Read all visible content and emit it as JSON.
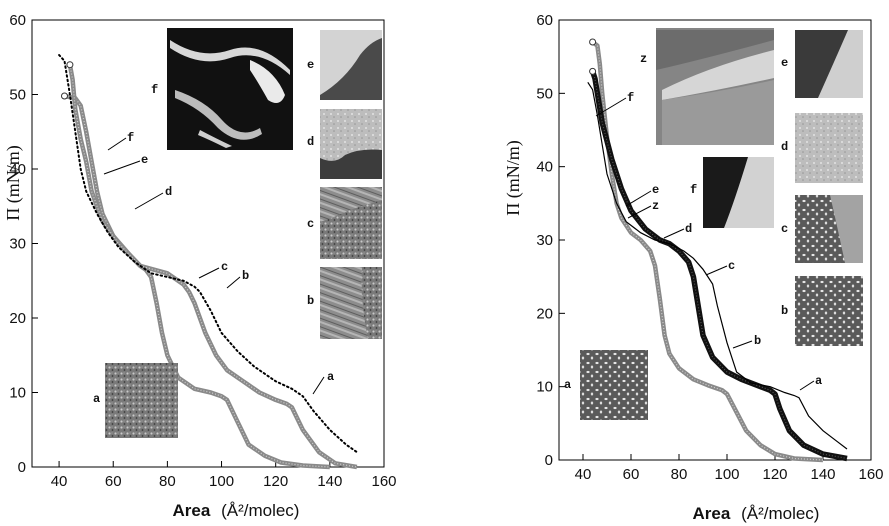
{
  "chart_data": [
    {
      "type": "line",
      "panel": "left",
      "xlabel_bold": "Area",
      "xlabel_rest": "(Å²/molec)",
      "ylabel": "Π  (mN/m)",
      "xlim": [
        30,
        160
      ],
      "ylim": [
        0,
        60
      ],
      "xticks": [
        40,
        60,
        80,
        100,
        120,
        140,
        160
      ],
      "yticks": [
        0,
        10,
        20,
        30,
        40,
        50,
        60
      ],
      "series": [
        {
          "style": "gray-markers",
          "points": [
            [
              42,
              49.8
            ],
            [
              46,
              49.5
            ],
            [
              48,
              48.5
            ],
            [
              50,
              45
            ],
            [
              52,
              41
            ],
            [
              54,
              37
            ],
            [
              56,
              34
            ],
            [
              60,
              31
            ],
            [
              66,
              28.5
            ],
            [
              70,
              27
            ],
            [
              72,
              26.5
            ],
            [
              74,
              25.5
            ],
            [
              76,
              22
            ],
            [
              78,
              18
            ],
            [
              80,
              15
            ],
            [
              84,
              12
            ],
            [
              90,
              10.5
            ],
            [
              96,
              10
            ],
            [
              100,
              9.5
            ],
            [
              102,
              9
            ],
            [
              106,
              6
            ],
            [
              110,
              3
            ],
            [
              116,
              1.5
            ],
            [
              122,
              0.6
            ],
            [
              130,
              0.2
            ],
            [
              140,
              0
            ]
          ]
        },
        {
          "style": "gray-markers",
          "points": [
            [
              44,
              54
            ],
            [
              45,
              52
            ],
            [
              46,
              48
            ],
            [
              48,
              44
            ],
            [
              50,
              41
            ],
            [
              52,
              37
            ],
            [
              56,
              33
            ],
            [
              62,
              30
            ],
            [
              70,
              27
            ],
            [
              80,
              26
            ],
            [
              86,
              24.5
            ],
            [
              88,
              23.5
            ],
            [
              90,
              22
            ],
            [
              94,
              18
            ],
            [
              98,
              15
            ],
            [
              102,
              13
            ],
            [
              108,
              11.5
            ],
            [
              114,
              10
            ],
            [
              120,
              9
            ],
            [
              124,
              8.5
            ],
            [
              126,
              8
            ],
            [
              130,
              5
            ],
            [
              136,
              2
            ],
            [
              142,
              0.5
            ],
            [
              150,
              0
            ]
          ]
        },
        {
          "style": "dotted",
          "points": [
            [
              40,
              55.3
            ],
            [
              42,
              54.5
            ],
            [
              44,
              50
            ],
            [
              46,
              45
            ],
            [
              48,
              40
            ],
            [
              50,
              37
            ],
            [
              54,
              34
            ],
            [
              58,
              31.5
            ],
            [
              62,
              29.5
            ],
            [
              68,
              27.5
            ],
            [
              74,
              26
            ],
            [
              80,
              25.5
            ],
            [
              86,
              25
            ],
            [
              90,
              24.2
            ],
            [
              92,
              23.5
            ],
            [
              96,
              21
            ],
            [
              100,
              18
            ],
            [
              106,
              15.5
            ],
            [
              112,
              13.5
            ],
            [
              120,
              11.5
            ],
            [
              126,
              10.5
            ],
            [
              130,
              9.5
            ],
            [
              134,
              7.5
            ],
            [
              140,
              5
            ],
            [
              146,
              3
            ],
            [
              150,
              2
            ]
          ]
        }
      ],
      "annotations": [
        "f",
        "e",
        "d",
        "c",
        "b",
        "a"
      ],
      "inset_labels": [
        "a",
        "b",
        "c",
        "d",
        "e",
        "f"
      ]
    },
    {
      "type": "line",
      "panel": "right",
      "xlabel_bold": "Area",
      "xlabel_rest": "(Å²/molec)",
      "ylabel": "Π  (mN/m)",
      "xlim": [
        30,
        160
      ],
      "ylim": [
        0,
        60
      ],
      "xticks": [
        40,
        60,
        80,
        100,
        120,
        140,
        160
      ],
      "yticks": [
        0,
        10,
        20,
        30,
        40,
        50,
        60
      ],
      "series": [
        {
          "style": "gray-markers",
          "points": [
            [
              44,
              57
            ],
            [
              46,
              56.5
            ],
            [
              47,
              54
            ],
            [
              48,
              50
            ],
            [
              50,
              44
            ],
            [
              52,
              39
            ],
            [
              54,
              35
            ],
            [
              56,
              33
            ],
            [
              60,
              31
            ],
            [
              64,
              30
            ],
            [
              68,
              28.5
            ],
            [
              70,
              26.5
            ],
            [
              72,
              22
            ],
            [
              74,
              17
            ],
            [
              76,
              14.5
            ],
            [
              80,
              12.5
            ],
            [
              86,
              11
            ],
            [
              92,
              10.2
            ],
            [
              98,
              9.5
            ],
            [
              100,
              9
            ],
            [
              104,
              6.5
            ],
            [
              108,
              4
            ],
            [
              114,
              2
            ],
            [
              120,
              0.8
            ],
            [
              128,
              0.2
            ],
            [
              140,
              0
            ]
          ]
        },
        {
          "style": "bold-markers",
          "points": [
            [
              44,
              53
            ],
            [
              45,
              52
            ],
            [
              46,
              50
            ],
            [
              48,
              46
            ],
            [
              52,
              41
            ],
            [
              56,
              37
            ],
            [
              60,
              34
            ],
            [
              66,
              31.5
            ],
            [
              72,
              30
            ],
            [
              76,
              29.5
            ],
            [
              80,
              28.5
            ],
            [
              84,
              27
            ],
            [
              86,
              25
            ],
            [
              88,
              21
            ],
            [
              90,
              17
            ],
            [
              94,
              14
            ],
            [
              100,
              12
            ],
            [
              106,
              11
            ],
            [
              114,
              10
            ],
            [
              118,
              9.5
            ],
            [
              120,
              9
            ],
            [
              122,
              7
            ],
            [
              126,
              4
            ],
            [
              132,
              2
            ],
            [
              140,
              0.8
            ],
            [
              150,
              0.2
            ]
          ]
        },
        {
          "style": "solid",
          "points": [
            [
              42,
              51.5
            ],
            [
              44,
              50.5
            ],
            [
              46,
              47
            ],
            [
              48,
              43
            ],
            [
              50,
              39
            ],
            [
              54,
              35
            ],
            [
              58,
              32.5
            ],
            [
              64,
              31
            ],
            [
              70,
              30
            ],
            [
              76,
              29.5
            ],
            [
              82,
              28.5
            ],
            [
              86,
              27.5
            ],
            [
              90,
              26
            ],
            [
              94,
              24
            ],
            [
              96,
              21
            ],
            [
              100,
              16
            ],
            [
              104,
              12
            ],
            [
              110,
              10.5
            ],
            [
              118,
              10
            ],
            [
              124,
              9.2
            ],
            [
              128,
              8.8
            ],
            [
              130,
              8.5
            ],
            [
              134,
              6
            ],
            [
              140,
              4
            ],
            [
              146,
              2.5
            ],
            [
              150,
              1.5
            ]
          ]
        }
      ],
      "annotations": [
        "f",
        "e",
        "z",
        "d",
        "c",
        "b",
        "a"
      ],
      "inset_labels": [
        "z",
        "e",
        "d",
        "f",
        "c",
        "b",
        "a"
      ]
    }
  ]
}
